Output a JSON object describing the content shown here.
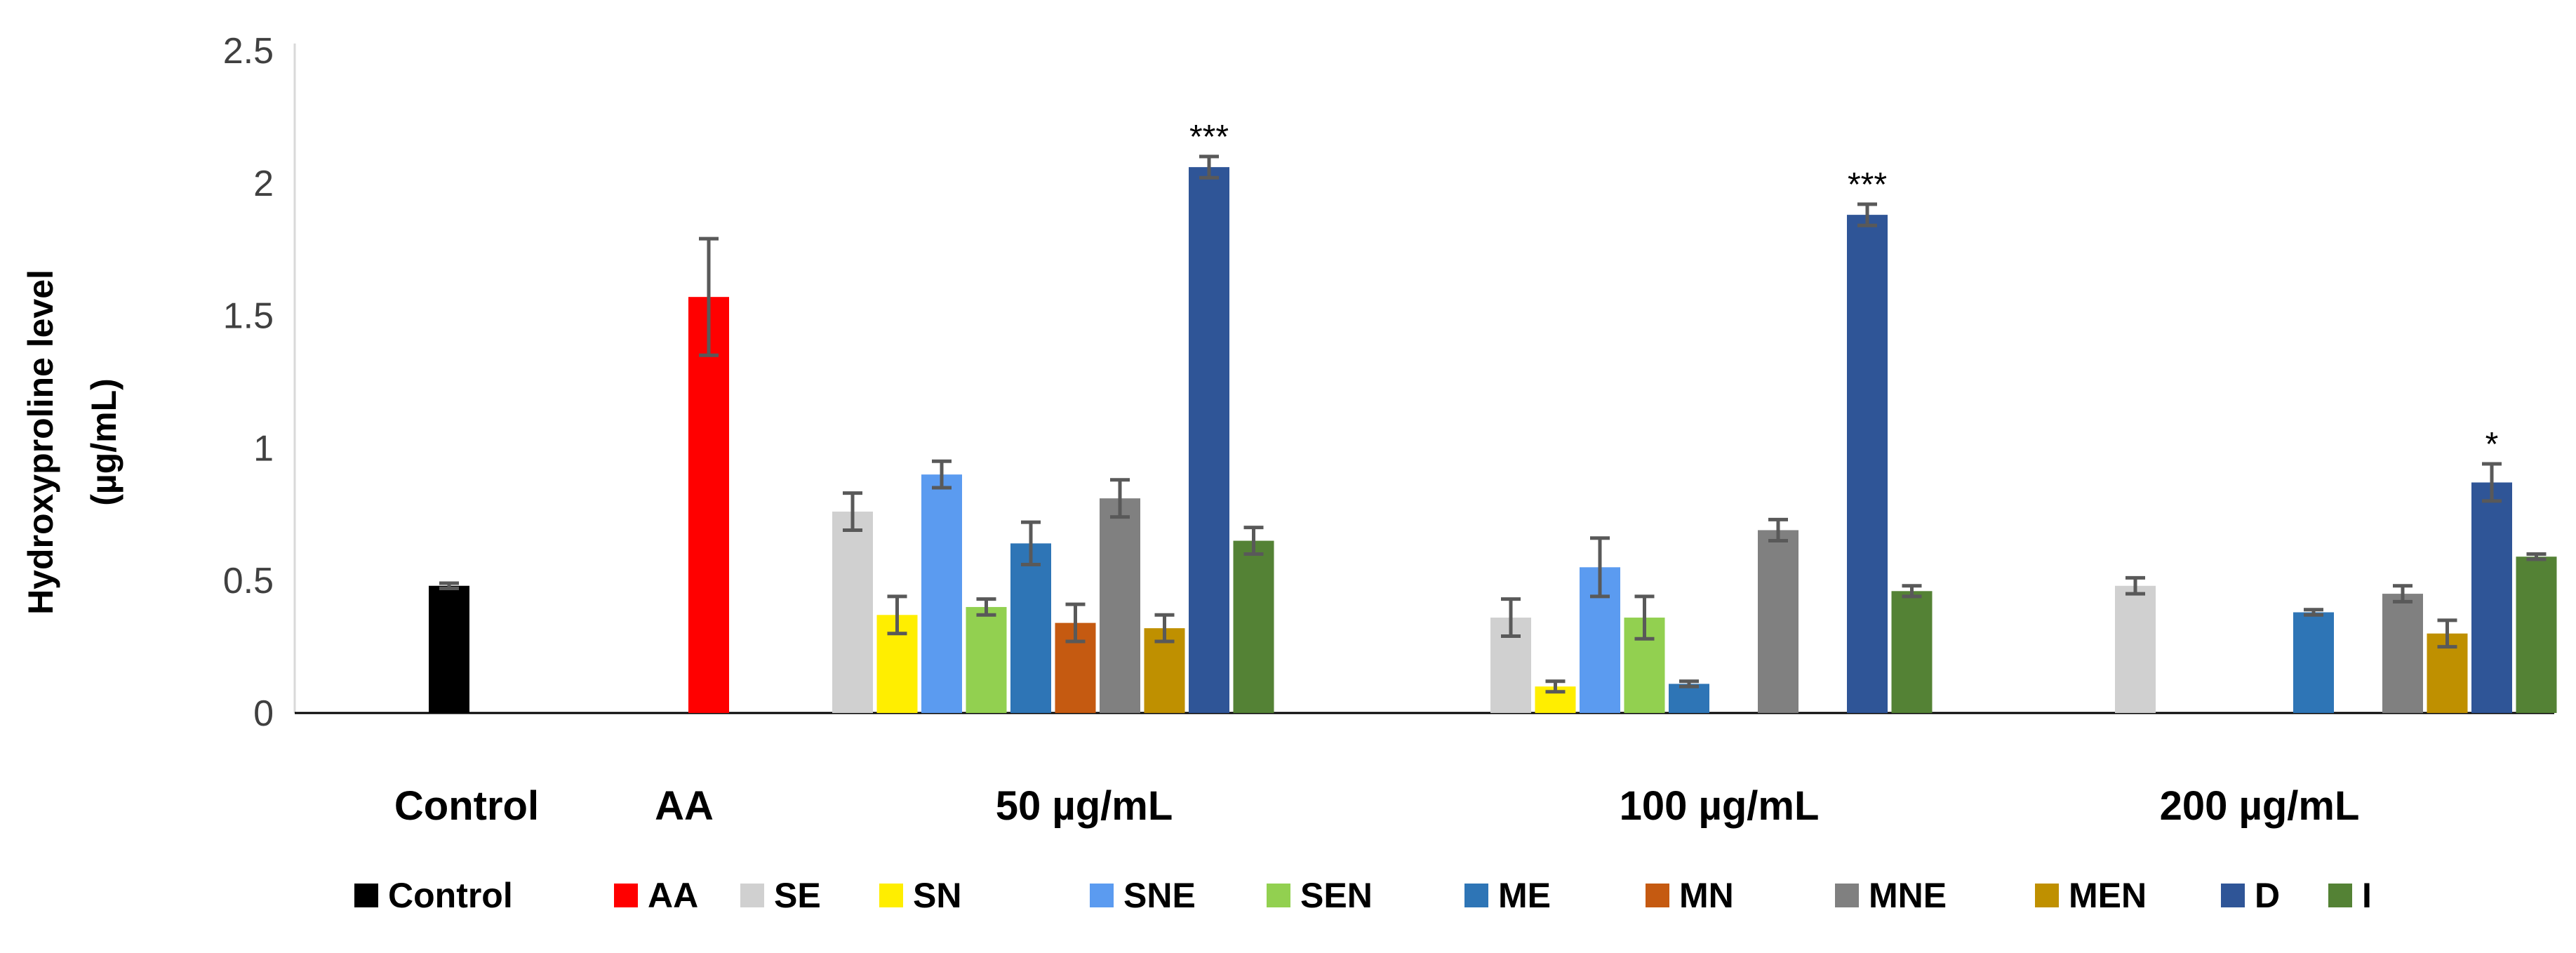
{
  "chart_data": {
    "type": "bar",
    "ylabel_line1": "Hydroxyproline level",
    "ylabel_line2": "(µg/mL)",
    "xlabel": "",
    "ylim": [
      0,
      2.5
    ],
    "y_ticks": [
      {
        "value": 0,
        "label": "0"
      },
      {
        "value": 0.5,
        "label": "0.5"
      },
      {
        "value": 1,
        "label": "1"
      },
      {
        "value": 1.5,
        "label": "1.5"
      },
      {
        "value": 2,
        "label": "2"
      },
      {
        "value": 2.5,
        "label": "2.5"
      }
    ],
    "categories": [
      "Control",
      "AA",
      "50 µg/mL",
      "100 µg/mL",
      "200 µg/mL"
    ],
    "series": [
      {
        "name": "Control",
        "color": "#000000",
        "values": [
          0.48,
          null,
          null,
          null,
          null
        ],
        "errors": [
          0.01,
          null,
          null,
          null,
          null
        ],
        "sig": [
          "",
          "",
          "",
          "",
          ""
        ]
      },
      {
        "name": "AA",
        "color": "#ff0000",
        "values": [
          null,
          1.57,
          null,
          null,
          null
        ],
        "errors": [
          null,
          0.22,
          null,
          null,
          null
        ],
        "sig": [
          "",
          "",
          "",
          "",
          ""
        ]
      },
      {
        "name": "SE",
        "color": "#d0d0d0",
        "values": [
          null,
          null,
          0.76,
          0.36,
          0.48
        ],
        "errors": [
          null,
          null,
          0.07,
          0.07,
          0.03
        ],
        "sig": [
          "",
          "",
          "",
          "",
          ""
        ]
      },
      {
        "name": "SN",
        "color": "#ffee00",
        "values": [
          null,
          null,
          0.37,
          0.1,
          null
        ],
        "errors": [
          null,
          null,
          0.07,
          0.02,
          null
        ],
        "sig": [
          "",
          "",
          "",
          "",
          ""
        ]
      },
      {
        "name": "SNE",
        "color": "#5b9bf0",
        "values": [
          null,
          null,
          0.9,
          0.55,
          null
        ],
        "errors": [
          null,
          null,
          0.05,
          0.11,
          null
        ],
        "sig": [
          "",
          "",
          "",
          "",
          ""
        ]
      },
      {
        "name": "SEN",
        "color": "#92d050",
        "values": [
          null,
          null,
          0.4,
          0.36,
          null
        ],
        "errors": [
          null,
          null,
          0.03,
          0.08,
          null
        ],
        "sig": [
          "",
          "",
          "",
          "",
          ""
        ]
      },
      {
        "name": "ME",
        "color": "#2e75b6",
        "values": [
          null,
          null,
          0.64,
          0.11,
          0.38
        ],
        "errors": [
          null,
          null,
          0.08,
          0.01,
          0.01
        ],
        "sig": [
          "",
          "",
          "",
          "",
          ""
        ]
      },
      {
        "name": "MN",
        "color": "#c55a11",
        "values": [
          null,
          null,
          0.34,
          null,
          null
        ],
        "errors": [
          null,
          null,
          0.07,
          null,
          null
        ],
        "sig": [
          "",
          "",
          "",
          "",
          ""
        ]
      },
      {
        "name": "MNE",
        "color": "#808080",
        "values": [
          null,
          null,
          0.81,
          0.69,
          0.45
        ],
        "errors": [
          null,
          null,
          0.07,
          0.04,
          0.03
        ],
        "sig": [
          "",
          "",
          "",
          "",
          ""
        ]
      },
      {
        "name": "MEN",
        "color": "#bf9000",
        "values": [
          null,
          null,
          0.32,
          null,
          0.3
        ],
        "errors": [
          null,
          null,
          0.05,
          null,
          0.05
        ],
        "sig": [
          "",
          "",
          "",
          "",
          ""
        ]
      },
      {
        "name": "D",
        "color": "#2f5597",
        "values": [
          null,
          null,
          2.06,
          1.88,
          0.87
        ],
        "errors": [
          null,
          null,
          0.04,
          0.04,
          0.07
        ],
        "sig": [
          "",
          "",
          "***",
          "***",
          "*"
        ]
      },
      {
        "name": "I",
        "color": "#548235",
        "values": [
          null,
          null,
          0.65,
          0.46,
          0.59
        ],
        "errors": [
          null,
          null,
          0.05,
          0.02,
          0.01
        ],
        "sig": [
          "",
          "",
          "",
          "",
          ""
        ]
      }
    ],
    "legend_position": "bottom"
  }
}
